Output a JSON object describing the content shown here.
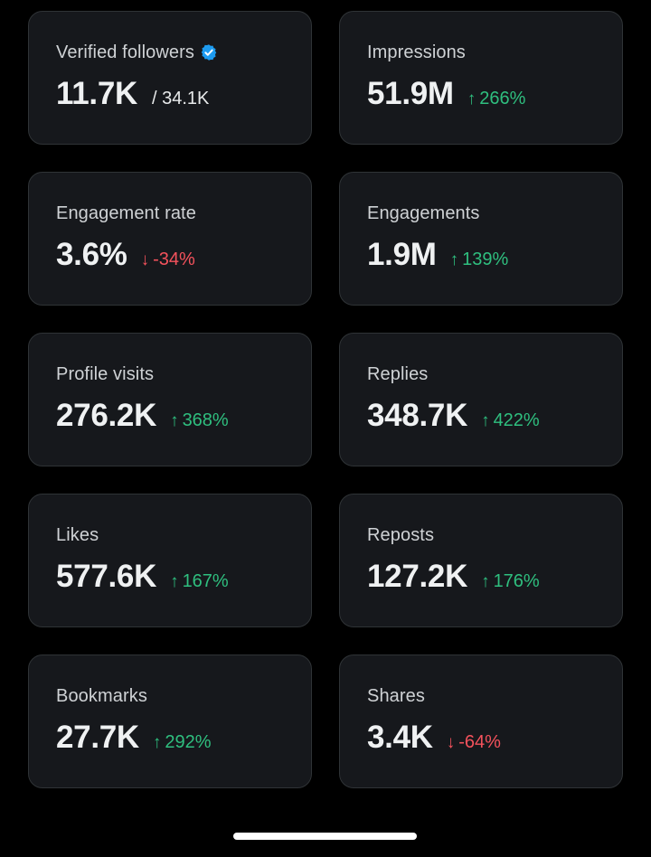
{
  "colors": {
    "background": "#000000",
    "card": "#16181c",
    "positive": "#2fbf7f",
    "negative": "#f4525c",
    "verified": "#1d9bf0"
  },
  "cards": [
    {
      "label": "Verified followers",
      "value": "11.7K",
      "total": "/ 34.1K",
      "icon": "verified-badge-icon"
    },
    {
      "label": "Impressions",
      "value": "51.9M",
      "change": "266%",
      "direction": "up"
    },
    {
      "label": "Engagement rate",
      "value": "3.6%",
      "change": "-34%",
      "direction": "down"
    },
    {
      "label": "Engagements",
      "value": "1.9M",
      "change": "139%",
      "direction": "up"
    },
    {
      "label": "Profile visits",
      "value": "276.2K",
      "change": "368%",
      "direction": "up"
    },
    {
      "label": "Replies",
      "value": "348.7K",
      "change": "422%",
      "direction": "up"
    },
    {
      "label": "Likes",
      "value": "577.6K",
      "change": "167%",
      "direction": "up"
    },
    {
      "label": "Reposts",
      "value": "127.2K",
      "change": "176%",
      "direction": "up"
    },
    {
      "label": "Bookmarks",
      "value": "27.7K",
      "change": "292%",
      "direction": "up"
    },
    {
      "label": "Shares",
      "value": "3.4K",
      "change": "-64%",
      "direction": "down"
    }
  ],
  "arrows": {
    "up": "↑",
    "down": "↓"
  }
}
